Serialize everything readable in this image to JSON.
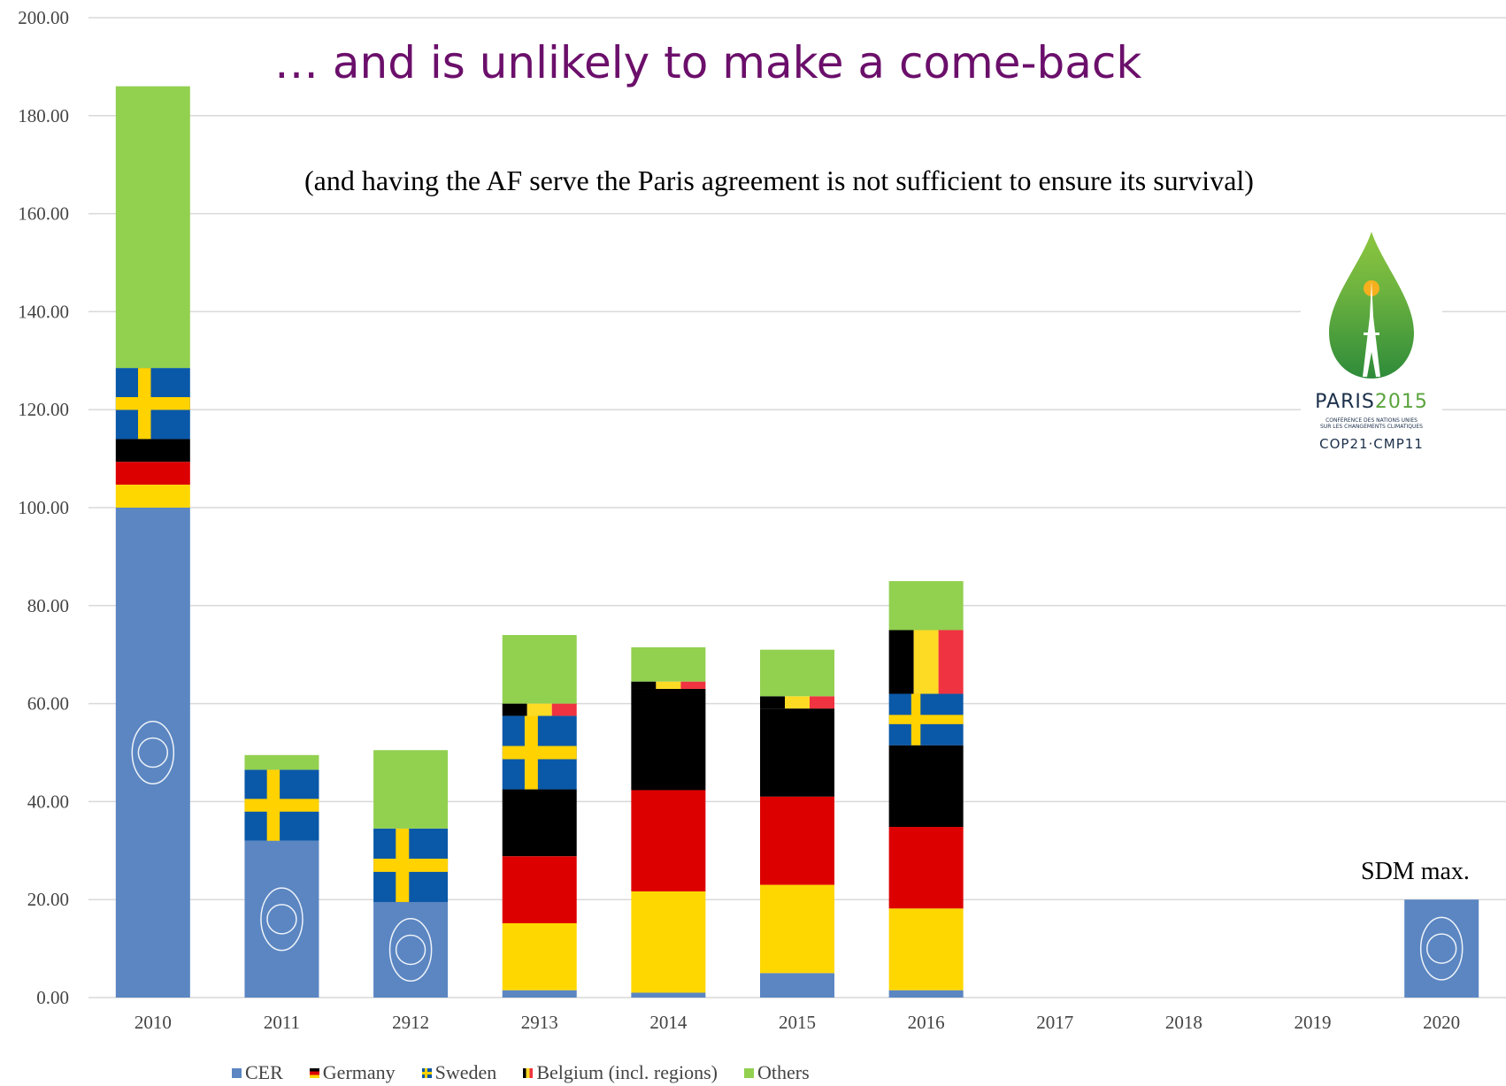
{
  "title": "… and is unlikely to make a come-back",
  "subtitle": "(and having the AF serve the Paris agreement is not sufficient to ensure its survival)",
  "annotation": "SDM max.",
  "logo": {
    "name": "PARIS",
    "year": "2015",
    "small_line1": "CONFÉRENCE DES NATIONS UNIES",
    "small_line2": "SUR LES CHANGEMENTS CLIMATIQUES",
    "cop": "COP21·CMP11"
  },
  "legend": {
    "cer": "CER",
    "germany": "Germany",
    "sweden": "Sweden",
    "belgium": "Belgium (incl. regions)",
    "others": "Others"
  },
  "colors": {
    "cer": "#5b86c2",
    "germany_black": "#000000",
    "germany_red": "#dd0000",
    "germany_gold": "#ffd700",
    "sweden_blue": "#0a58a8",
    "sweden_yellow": "#ffd200",
    "belgium_black": "#000000",
    "belgium_yellow": "#fdda24",
    "belgium_red": "#ef3340",
    "others": "#92d050",
    "title": "#6b0f6b"
  },
  "chart_data": {
    "type": "bar",
    "stacked": true,
    "categories": [
      "2010",
      "2011",
      "2912",
      "2913",
      "2014",
      "2015",
      "2016",
      "2017",
      "2018",
      "2019",
      "2020"
    ],
    "series": [
      {
        "name": "CER",
        "values": [
          100,
          32,
          19.5,
          1.5,
          1,
          5,
          1.5,
          0,
          0,
          0,
          20
        ]
      },
      {
        "name": "Germany",
        "values": [
          14,
          0,
          0,
          41,
          62,
          54,
          50,
          0,
          0,
          0,
          0
        ]
      },
      {
        "name": "Sweden",
        "values": [
          14.5,
          14.5,
          15,
          15,
          0,
          0,
          10.5,
          0,
          0,
          0,
          0
        ]
      },
      {
        "name": "Belgium (incl. regions)",
        "values": [
          0,
          0,
          0,
          2.5,
          1.5,
          2.5,
          13,
          0,
          0,
          0,
          0
        ]
      },
      {
        "name": "Others",
        "values": [
          57.5,
          3,
          16,
          14,
          7,
          9.5,
          10,
          0,
          0,
          0,
          0
        ]
      }
    ],
    "y_ticks": [
      "0.00",
      "20.00",
      "40.00",
      "60.00",
      "80.00",
      "100.00",
      "120.00",
      "140.00",
      "160.00",
      "180.00",
      "200.00"
    ],
    "ylim": [
      0,
      200
    ],
    "grid": true,
    "legend_position": "bottom"
  }
}
